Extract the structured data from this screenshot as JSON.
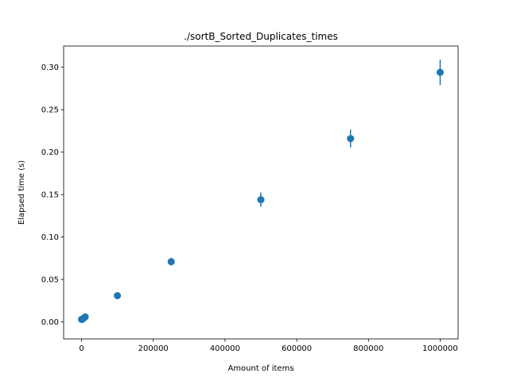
{
  "chart_data": {
    "type": "scatter",
    "title": "./sortB_Sorted_Duplicates_times",
    "xlabel": "Amount of items",
    "ylabel": "Elapsed time (s)",
    "xlim": [
      -50000,
      1050000
    ],
    "ylim": [
      -0.02,
      0.325
    ],
    "xticks": [
      0,
      200000,
      400000,
      600000,
      800000,
      1000000
    ],
    "xtick_labels": [
      "0",
      "200000",
      "400000",
      "600000",
      "800000",
      "1000000"
    ],
    "yticks": [
      0.0,
      0.05,
      0.1,
      0.15,
      0.2,
      0.25,
      0.3
    ],
    "ytick_labels": [
      "0.00",
      "0.05",
      "0.10",
      "0.15",
      "0.20",
      "0.25",
      "0.30"
    ],
    "grid": false,
    "marker_color": "#1f77b4",
    "series": [
      {
        "x": [
          100,
          1000,
          5000,
          10000,
          100000,
          250000,
          500000,
          750000,
          1000000
        ],
        "y": [
          0.003,
          0.003,
          0.004,
          0.006,
          0.031,
          0.071,
          0.144,
          0.216,
          0.294
        ],
        "yerr": [
          0.0005,
          0.0005,
          0.0006,
          0.0008,
          0.0015,
          0.0045,
          0.0085,
          0.0105,
          0.015
        ]
      }
    ]
  }
}
